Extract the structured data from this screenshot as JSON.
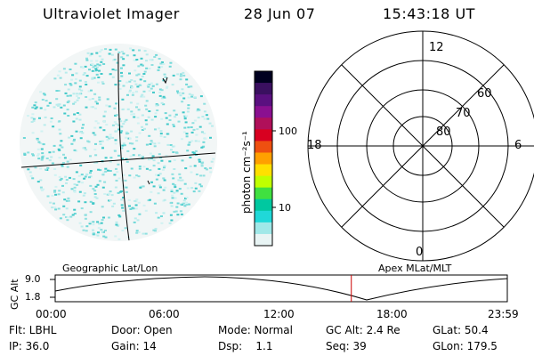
{
  "header": {
    "instrument": "Ultraviolet Imager",
    "date": "28 Jun 07",
    "time": "15:43:18 UT"
  },
  "colorbar": {
    "unit_label": "photon cm⁻²s⁻¹",
    "ticks": [
      "100",
      "10"
    ],
    "colors": [
      "#000020",
      "#3a1060",
      "#5a1080",
      "#8a1090",
      "#b0105a",
      "#d80020",
      "#ee5010",
      "#ffa000",
      "#ffe000",
      "#c0ff00",
      "#40e040",
      "#00c8a0",
      "#20d8d8",
      "#a0e8e8",
      "#e8f4f4"
    ]
  },
  "polar": {
    "mlt_labels": [
      "12",
      "6",
      "18",
      "0"
    ],
    "lat_labels": [
      "60",
      "70",
      "80"
    ]
  },
  "timeline": {
    "left_label": "Geographic Lat/Lon",
    "right_label": "Apex MLat/MLT",
    "yaxis_label": "GC Alt",
    "yticks": [
      "9.0",
      "1.8"
    ],
    "xticks": [
      "00:00",
      "06:00",
      "12:00",
      "18:00",
      "23:59"
    ],
    "current_time_fraction": 0.655,
    "marker_color": "#cc0000"
  },
  "info": {
    "row1": [
      {
        "k": "Flt: LBHL"
      },
      {
        "k": "Door: Open"
      },
      {
        "k": "Mode: Normal"
      },
      {
        "k": "GC Alt: 2.4 Re"
      },
      {
        "k": "GLat:  50.4"
      }
    ],
    "row2": [
      {
        "k": "IP: 36.0"
      },
      {
        "k": "Gain: 14"
      },
      {
        "k": "Dsp:    1.1"
      },
      {
        "k": "Seq: 39"
      },
      {
        "k": "GLon: 179.5"
      }
    ]
  }
}
